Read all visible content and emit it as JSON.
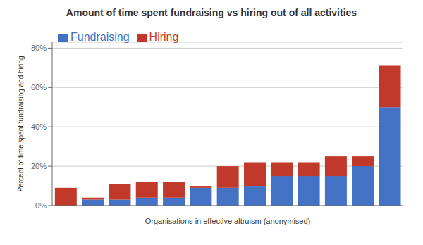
{
  "chart_data": {
    "type": "bar",
    "title": "Amount of time spent fundraising vs hiring out of all activities",
    "xlabel": "Organisations in effective altruism (anonymised)",
    "ylabel": "Percent of time spent fundraising and hiring",
    "categories": [
      null,
      null,
      null,
      null,
      null,
      null,
      null,
      null,
      null,
      null,
      null,
      null,
      null
    ],
    "series": [
      {
        "name": "Fundraising",
        "color": "#4472C4",
        "values": [
          0,
          3,
          3,
          4,
          4,
          9,
          9,
          10,
          15,
          15,
          15,
          20,
          50
        ]
      },
      {
        "name": "Hiring",
        "color": "#C0392B",
        "values": [
          9,
          1,
          8,
          8,
          8,
          1,
          11,
          12,
          7,
          7,
          10,
          5,
          21
        ]
      }
    ],
    "stacked": true,
    "ylim": [
      0,
      83
    ],
    "yticks": [
      {
        "value": 0,
        "label": "0%"
      },
      {
        "value": 20,
        "label": "20%"
      },
      {
        "value": 40,
        "label": "40%"
      },
      {
        "value": 60,
        "label": "60%"
      },
      {
        "value": 80,
        "label": "80%"
      }
    ],
    "grid": true,
    "legend": "upper left",
    "tick_labels": "y"
  }
}
